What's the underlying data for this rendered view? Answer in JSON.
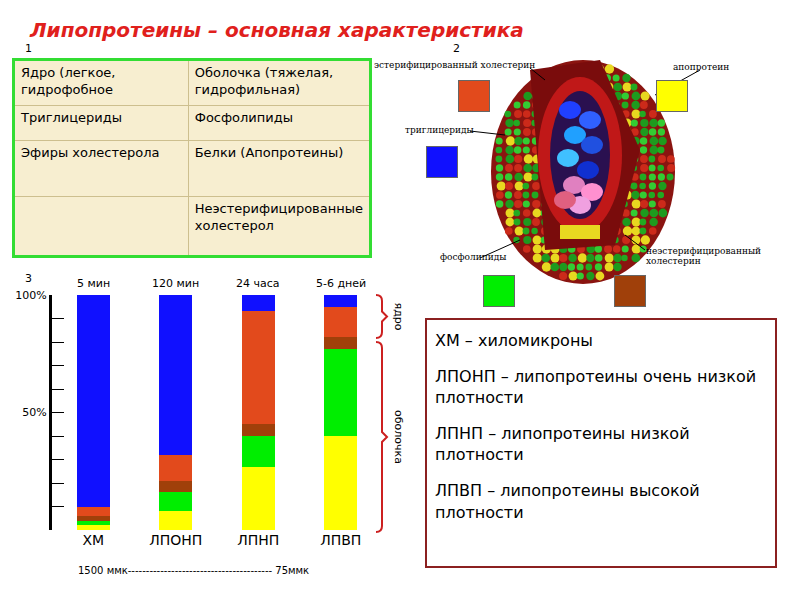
{
  "title": "Липопротеины – основная характеристика",
  "panel_numbers": [
    "1",
    "2",
    "3"
  ],
  "table": {
    "header": [
      "Ядро (легкое, гидрофобное",
      "Оболочка (тяжелая, гидрофильная)"
    ],
    "rows": [
      [
        "Триглицериды",
        "Фосфолипиды"
      ],
      [
        "Эфиры холестерола",
        "Белки (Апопротеины)"
      ],
      [
        null,
        "Неэстерифицированные холестерол"
      ]
    ]
  },
  "chart_data": {
    "type": "bar",
    "stacked": true,
    "categories": [
      "ХМ",
      "ЛПОНП",
      "ЛПНП",
      "ЛПВП"
    ],
    "annotations": [
      "5 мин",
      "120 мин",
      "24 часа",
      "5-6 дней"
    ],
    "x_caption": "1500 ммк---------------------------------------- 75ммк",
    "brackets": [
      "ядро",
      "оболочка"
    ],
    "ylim": [
      0,
      100
    ],
    "yticks": [
      {
        "value": 50,
        "label": "50%"
      },
      {
        "value": 100,
        "label": "100%"
      }
    ],
    "minor_yticks": [
      0,
      10,
      20,
      30,
      40,
      60,
      70,
      80,
      90
    ],
    "series": [
      {
        "name": "апопротеин",
        "color": "#ffff00",
        "values": [
          2,
          8,
          27,
          40
        ]
      },
      {
        "name": "фосфолипиды",
        "color": "#00ee00",
        "values": [
          2,
          8,
          13,
          37
        ]
      },
      {
        "name": "неэстерифицированный холестерин",
        "color": "#a0400a",
        "values": [
          2,
          5,
          5,
          5
        ]
      },
      {
        "name": "эстерифицированный холестерин",
        "color": "#e24a1c",
        "values": [
          4,
          11,
          48,
          13
        ]
      },
      {
        "name": "триглицериды",
        "color": "#1010ff",
        "values": [
          90,
          68,
          7,
          5
        ]
      }
    ]
  },
  "legend_box": [
    "ХМ – хиломикроны",
    "ЛПОНП – липопротеины очень низкой плотности",
    "ЛПНП – липопротеины низкой плотности",
    "ЛПВП – липопротеины высокой плотности"
  ]
}
